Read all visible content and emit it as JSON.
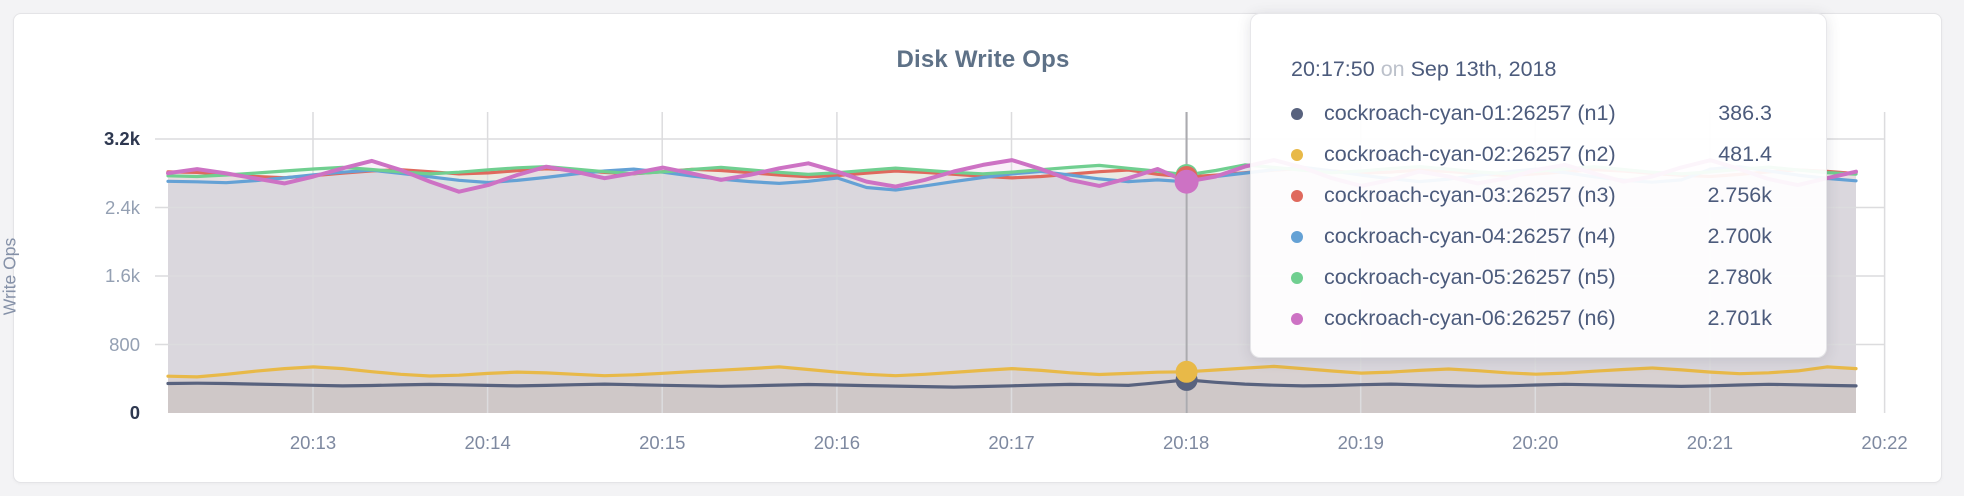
{
  "page": {
    "background": "#f3f3f5",
    "card_background": "#ffffff"
  },
  "chart": {
    "title": "Disk Write Ops",
    "y_axis_label": "Write Ops",
    "grid_color": "#dcdcde",
    "hover_line_color": "#ababaf"
  },
  "tooltip": {
    "time": "20:17:50",
    "conjunction": "on",
    "date": "Sep 13th, 2018",
    "rows": [
      {
        "name": "cockroach-cyan-01:26257 (n1)",
        "value": "386.3",
        "color": "#58627e"
      },
      {
        "name": "cockroach-cyan-02:26257 (n2)",
        "value": "481.4",
        "color": "#e8b948"
      },
      {
        "name": "cockroach-cyan-03:26257 (n3)",
        "value": "2.756k",
        "color": "#df695d"
      },
      {
        "name": "cockroach-cyan-04:26257 (n4)",
        "value": "2.700k",
        "color": "#64a1d5"
      },
      {
        "name": "cockroach-cyan-05:26257 (n5)",
        "value": "2.780k",
        "color": "#70cf90"
      },
      {
        "name": "cockroach-cyan-06:26257 (n6)",
        "value": "2.701k",
        "color": "#cd72c4"
      }
    ]
  },
  "chart_data": {
    "type": "line",
    "title": "Disk Write Ops",
    "ylabel": "Write Ops",
    "xlabel": "",
    "ylim": [
      0,
      3200
    ],
    "grid": true,
    "legend_position": "tooltip-overlay",
    "x_start_time": "20:12:00",
    "x_end_time": "20:21:40",
    "x_interval_seconds": 10,
    "x_tick_labels": [
      "20:13",
      "20:14",
      "20:15",
      "20:16",
      "20:17",
      "20:18",
      "20:19",
      "20:20",
      "20:21",
      "20:22"
    ],
    "y_ticks": [
      {
        "value": 0,
        "label": "0",
        "strong": true
      },
      {
        "value": 800,
        "label": "800",
        "strong": false
      },
      {
        "value": 1600,
        "label": "1.6k",
        "strong": false
      },
      {
        "value": 2400,
        "label": "2.4k",
        "strong": false
      },
      {
        "value": 3200,
        "label": "3.2k",
        "strong": true
      }
    ],
    "hover_index": 35,
    "hover_time": "20:17:50",
    "series": [
      {
        "name": "cockroach-cyan-01:26257 (n1)",
        "color": "#58627e",
        "hover_value": 386.3,
        "values": [
          345,
          348,
          344,
          338,
          331,
          324,
          316,
          321,
          328,
          334,
          329,
          322,
          316,
          322,
          330,
          337,
          331,
          324,
          318,
          312,
          318,
          326,
          333,
          327,
          320,
          314,
          308,
          303,
          309,
          318,
          327,
          334,
          329,
          322,
          354,
          386,
          359,
          337,
          325,
          316,
          321,
          330,
          337,
          329,
          320,
          313,
          318,
          327,
          335,
          329,
          322,
          316,
          311,
          318,
          327,
          335,
          329,
          322,
          316
        ]
      },
      {
        "name": "cockroach-cyan-02:26257 (n2)",
        "color": "#e8b948",
        "hover_value": 481.4,
        "values": [
          430,
          422,
          452,
          488,
          518,
          538,
          518,
          482,
          452,
          432,
          442,
          462,
          478,
          468,
          452,
          436,
          446,
          464,
          484,
          500,
          518,
          538,
          508,
          476,
          452,
          436,
          452,
          474,
          498,
          518,
          498,
          470,
          450,
          462,
          476,
          481,
          502,
          524,
          544,
          518,
          490,
          466,
          478,
          498,
          514,
          494,
          470,
          453,
          466,
          488,
          508,
          526,
          503,
          478,
          459,
          470,
          492,
          538,
          518
        ]
      },
      {
        "name": "cockroach-cyan-03:26257 (n3)",
        "color": "#df695d",
        "hover_value": 2756,
        "values": [
          2816,
          2810,
          2790,
          2762,
          2748,
          2772,
          2800,
          2828,
          2842,
          2818,
          2792,
          2804,
          2830,
          2852,
          2836,
          2810,
          2794,
          2818,
          2846,
          2832,
          2806,
          2780,
          2758,
          2774,
          2802,
          2826,
          2810,
          2788,
          2764,
          2746,
          2762,
          2790,
          2818,
          2838,
          2788,
          2756,
          2778,
          2806,
          2836,
          2856,
          2828,
          2800,
          2814,
          2838,
          2820,
          2794,
          2772,
          2792,
          2816,
          2842,
          2826,
          2798,
          2776,
          2762,
          2786,
          2816,
          2840,
          2822,
          2796
        ]
      },
      {
        "name": "cockroach-cyan-04:26257 (n4)",
        "color": "#64a1d5",
        "hover_value": 2700,
        "values": [
          2706,
          2700,
          2690,
          2714,
          2746,
          2782,
          2812,
          2836,
          2798,
          2758,
          2718,
          2692,
          2716,
          2752,
          2792,
          2826,
          2848,
          2812,
          2768,
          2730,
          2702,
          2682,
          2706,
          2744,
          2634,
          2604,
          2652,
          2702,
          2750,
          2792,
          2822,
          2778,
          2734,
          2702,
          2722,
          2700,
          2762,
          2802,
          2842,
          2868,
          2828,
          2778,
          2738,
          2702,
          2732,
          2776,
          2816,
          2848,
          2808,
          2758,
          2720,
          2696,
          2722,
          2848,
          2876,
          2828,
          2778,
          2740,
          2712
        ]
      },
      {
        "name": "cockroach-cyan-05:26257 (n5)",
        "color": "#70cf90",
        "hover_value": 2780,
        "values": [
          2770,
          2762,
          2780,
          2802,
          2826,
          2850,
          2868,
          2844,
          2816,
          2792,
          2812,
          2840,
          2864,
          2878,
          2848,
          2818,
          2796,
          2816,
          2844,
          2868,
          2840,
          2810,
          2786,
          2806,
          2834,
          2860,
          2836,
          2810,
          2792,
          2814,
          2842,
          2868,
          2892,
          2858,
          2824,
          2780,
          2832,
          2898,
          2868,
          2834,
          2806,
          2826,
          2854,
          2878,
          2848,
          2816,
          2796,
          2822,
          2850,
          2876,
          2844,
          2812,
          2792,
          2816,
          2846,
          2872,
          2838,
          2808,
          2790
        ]
      },
      {
        "name": "cockroach-cyan-06:26257 (n6)",
        "color": "#cd72c4",
        "hover_value": 2701,
        "values": [
          2800,
          2848,
          2798,
          2740,
          2682,
          2762,
          2858,
          2944,
          2838,
          2702,
          2584,
          2662,
          2780,
          2876,
          2818,
          2742,
          2800,
          2866,
          2798,
          2722,
          2782,
          2858,
          2916,
          2818,
          2702,
          2644,
          2722,
          2820,
          2898,
          2954,
          2848,
          2722,
          2652,
          2742,
          2850,
          2701,
          2762,
          2878,
          2954,
          2866,
          2742,
          2652,
          2722,
          2820,
          2762,
          2682,
          2742,
          2838,
          2898,
          2798,
          2702,
          2762,
          2868,
          2952,
          2848,
          2732,
          2662,
          2742,
          2818
        ]
      }
    ]
  }
}
